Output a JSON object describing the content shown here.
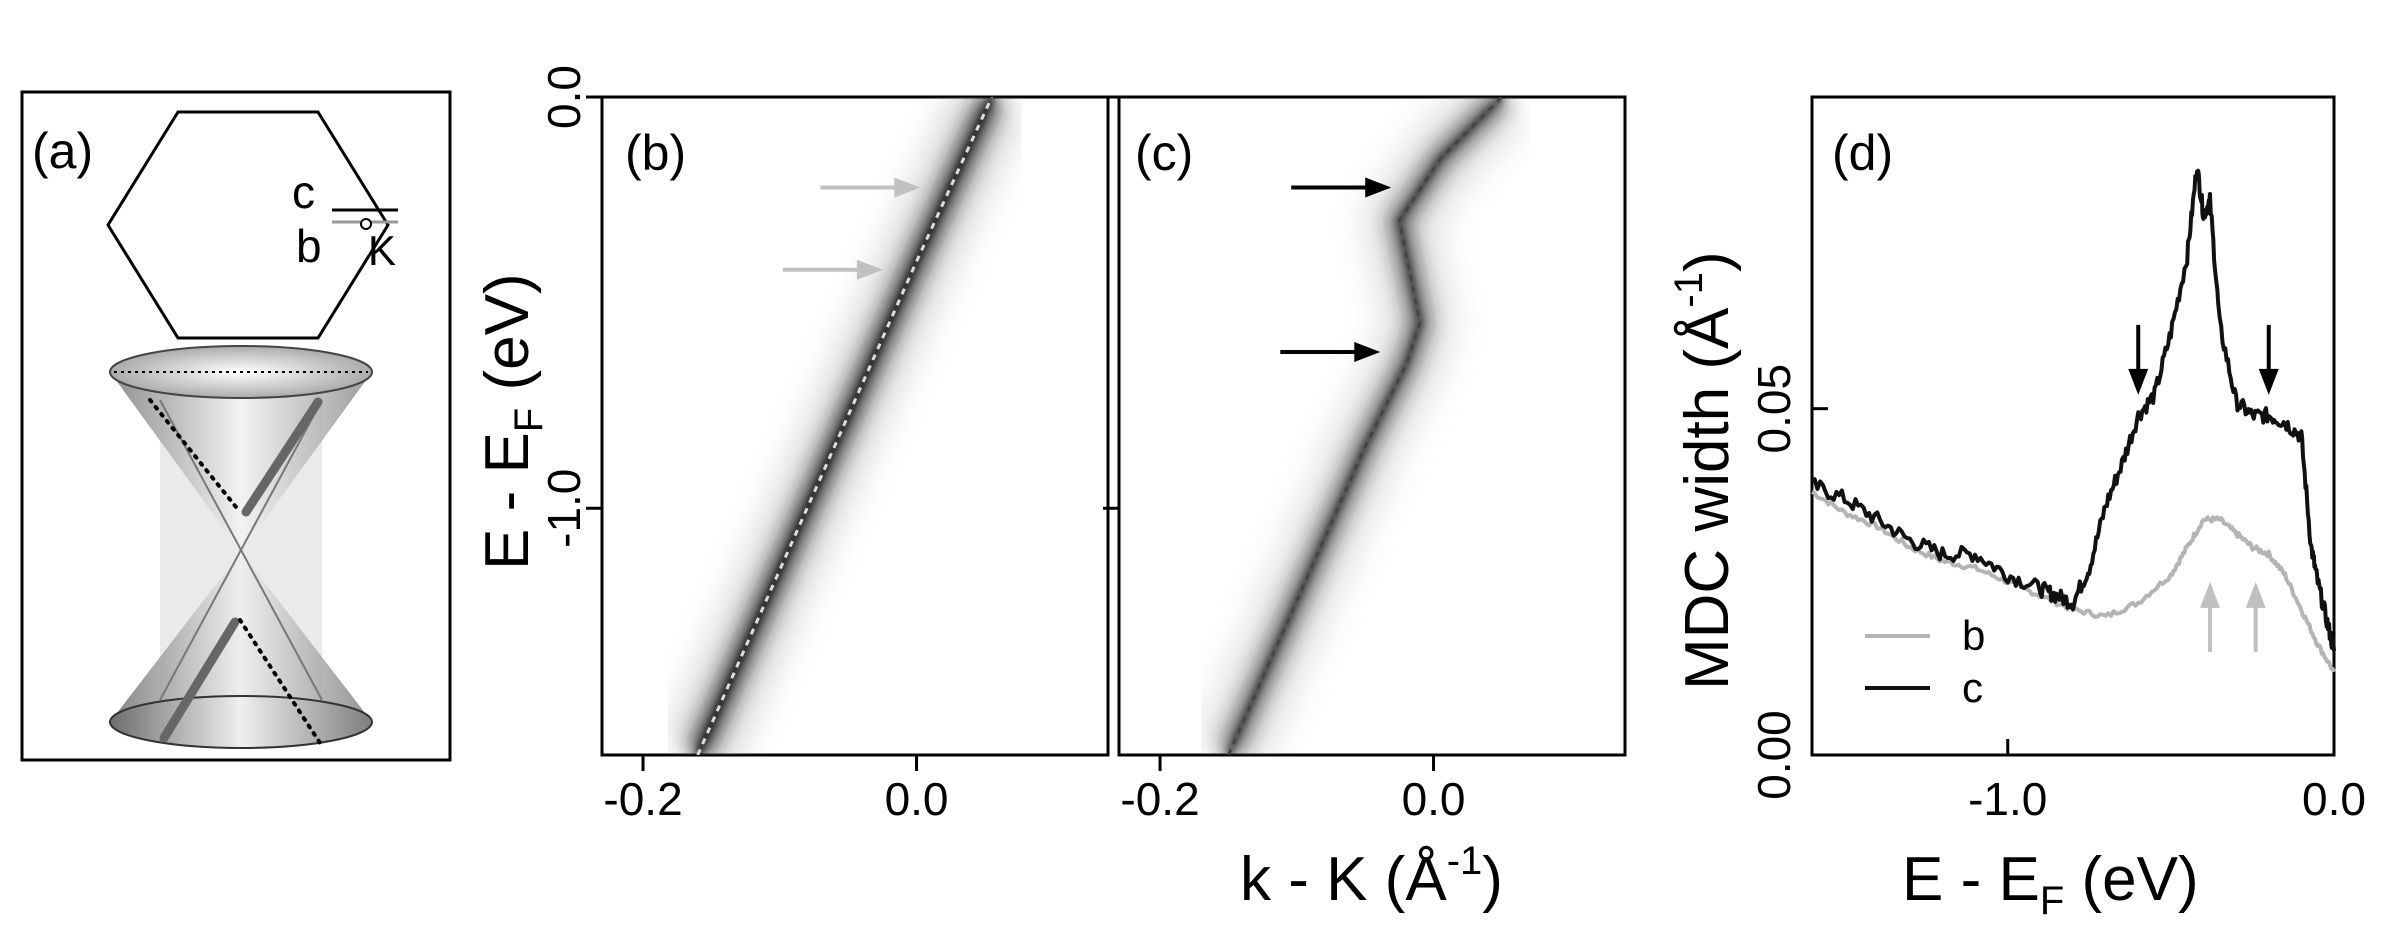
{
  "panel_labels": {
    "a": "(a)",
    "b": "(b)",
    "c": "(c)",
    "d": "(d)"
  },
  "panel_a": {
    "cut_label_c": "c",
    "cut_label_b": "b",
    "point_label": "K"
  },
  "axes_bc": {
    "ylabel": "E - E",
    "ylabel_sub": "F",
    "ylabel_unit": " (eV)",
    "xlabel": "k - K (Å",
    "xlabel_sup": "-1",
    "xlabel_end": ")",
    "b_xticks": [
      "-0.2",
      "0.0"
    ],
    "c_xticks": [
      "-0.2",
      "0.0"
    ],
    "yticks": [
      "0.0",
      "-1.0"
    ]
  },
  "axes_d": {
    "ylabel": "MDC width (Å",
    "ylabel_sup": "-1",
    "ylabel_end": ")",
    "xlabel": "E - E",
    "xlabel_sub": "F",
    "xlabel_unit": " (eV)",
    "xticks": [
      "-1.0",
      "0.0"
    ],
    "yticks": [
      "0.00",
      "0.05"
    ],
    "legend": [
      "b",
      "c"
    ]
  },
  "colors": {
    "series_b": "#b4b4b4",
    "series_c": "#111111",
    "arrow_gray": "#c0c0c0",
    "arrow_black": "#000000"
  },
  "chart_data": [
    {
      "type": "heatmap",
      "panel": "b",
      "xlim": [
        -0.23,
        0.14
      ],
      "ylim": [
        -1.6,
        0.0
      ],
      "x_ticks": [
        -0.2,
        0.0
      ],
      "y_ticks": [
        0.0,
        -1.0
      ],
      "dispersion": {
        "x": [
          -0.16,
          0.0,
          0.055
        ],
        "y": [
          -1.6,
          -0.4,
          0.0
        ]
      },
      "arrows_y": [
        -0.22,
        -0.42
      ]
    },
    {
      "type": "heatmap",
      "panel": "c",
      "xlim": [
        -0.23,
        0.14
      ],
      "ylim": [
        -1.6,
        0.0
      ],
      "x_ticks": [
        -0.2,
        0.0
      ],
      "dispersion": {
        "x": [
          -0.15,
          -0.05,
          -0.02,
          -0.01,
          -0.025,
          0.005,
          0.05
        ],
        "y": [
          -1.6,
          -0.85,
          -0.65,
          -0.55,
          -0.3,
          -0.15,
          0.0
        ]
      },
      "arrows_y": [
        -0.22,
        -0.62
      ]
    },
    {
      "type": "line",
      "panel": "d",
      "xlabel": "E - EF (eV)",
      "ylabel": "MDC width (Å-1)",
      "xlim": [
        -1.6,
        0.0
      ],
      "ylim": [
        0.0,
        0.095
      ],
      "x_ticks": [
        -1.0,
        0.0
      ],
      "y_ticks": [
        0.0,
        0.05
      ],
      "series": [
        {
          "name": "b",
          "x": [
            -1.6,
            -1.5,
            -1.4,
            -1.3,
            -1.2,
            -1.1,
            -1.0,
            -0.9,
            -0.8,
            -0.7,
            -0.6,
            -0.5,
            -0.45,
            -0.4,
            -0.35,
            -0.3,
            -0.25,
            -0.2,
            -0.15,
            -0.1,
            -0.05,
            0.0
          ],
          "values": [
            0.038,
            0.035,
            0.033,
            0.03,
            0.028,
            0.027,
            0.025,
            0.023,
            0.021,
            0.02,
            0.022,
            0.026,
            0.03,
            0.034,
            0.034,
            0.032,
            0.03,
            0.029,
            0.026,
            0.021,
            0.016,
            0.012
          ]
        },
        {
          "name": "c",
          "x": [
            -1.6,
            -1.5,
            -1.4,
            -1.3,
            -1.2,
            -1.1,
            -1.0,
            -0.9,
            -0.85,
            -0.8,
            -0.75,
            -0.7,
            -0.65,
            -0.6,
            -0.55,
            -0.5,
            -0.45,
            -0.42,
            -0.4,
            -0.38,
            -0.35,
            -0.3,
            -0.25,
            -0.2,
            -0.15,
            -0.1,
            -0.07,
            -0.05,
            -0.02,
            0.0
          ],
          "values": [
            0.039,
            0.037,
            0.034,
            0.031,
            0.029,
            0.029,
            0.026,
            0.024,
            0.023,
            0.022,
            0.027,
            0.036,
            0.042,
            0.049,
            0.052,
            0.061,
            0.072,
            0.085,
            0.078,
            0.08,
            0.062,
            0.051,
            0.049,
            0.049,
            0.048,
            0.046,
            0.03,
            0.025,
            0.019,
            0.015
          ]
        }
      ],
      "arrows_black_x": [
        -0.6,
        -0.2
      ],
      "arrows_gray_x": [
        -0.38,
        -0.24
      ]
    }
  ]
}
